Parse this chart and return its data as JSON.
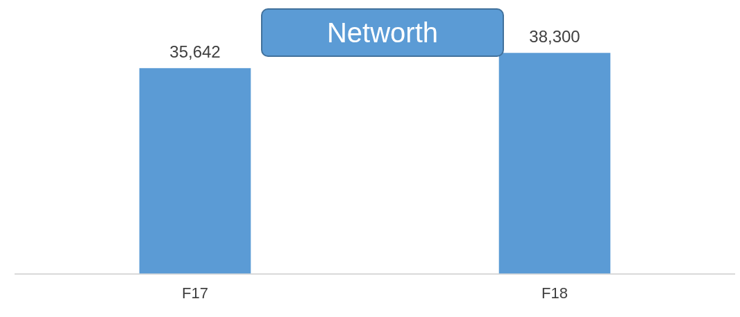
{
  "chart_data": {
    "type": "bar",
    "title": "Networth",
    "categories": [
      "F17",
      "F18"
    ],
    "values": [
      35642,
      38300
    ],
    "value_labels": [
      "35,642",
      "38,300"
    ],
    "color": "#5b9bd5",
    "tick_labels": "x",
    "grid": false,
    "legend": false
  }
}
